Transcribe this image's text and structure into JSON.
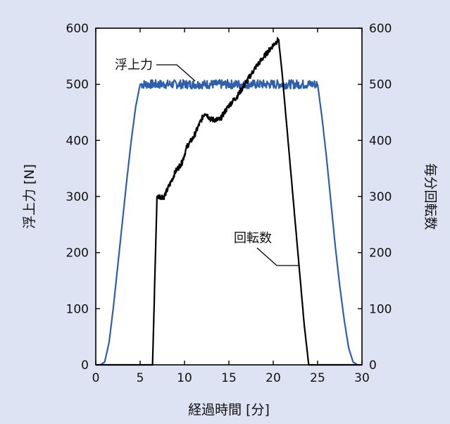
{
  "chart_data": {
    "type": "line",
    "xlabel": "経過時間 [分]",
    "ylabel_left": "浮上力 [N]",
    "ylabel_right": "毎分回転数",
    "xlim": [
      0,
      30
    ],
    "ylim_left": [
      0,
      600
    ],
    "ylim_right": [
      0,
      600
    ],
    "x_ticks": [
      "0",
      "5",
      "10",
      "15",
      "20",
      "25",
      "30"
    ],
    "y_ticks_left": [
      "0",
      "100",
      "200",
      "300",
      "400",
      "500",
      "600"
    ],
    "y_ticks_right": [
      "0",
      "100",
      "200",
      "300",
      "400",
      "500",
      "600"
    ],
    "grid": false,
    "colors": {
      "background": "#dde3f3",
      "plot_bg": "#ffffff",
      "lift": "#2f5fa8",
      "rpm": "#000000"
    },
    "series": [
      {
        "name": "浮上力",
        "axis": "left",
        "points": [
          [
            0.5,
            0
          ],
          [
            1,
            5
          ],
          [
            1.5,
            40
          ],
          [
            2,
            105
          ],
          [
            2.5,
            180
          ],
          [
            3,
            255
          ],
          [
            3.5,
            330
          ],
          [
            4,
            400
          ],
          [
            4.5,
            460
          ],
          [
            5,
            500
          ],
          [
            25,
            500
          ],
          [
            25.5,
            440
          ],
          [
            26,
            370
          ],
          [
            26.5,
            290
          ],
          [
            27,
            210
          ],
          [
            27.5,
            140
          ],
          [
            28,
            80
          ],
          [
            28.5,
            30
          ],
          [
            29,
            5
          ],
          [
            29.5,
            0
          ]
        ]
      },
      {
        "name": "回転数",
        "axis": "right",
        "points": [
          [
            0,
            0
          ],
          [
            6.4,
            0
          ],
          [
            6.9,
            300
          ],
          [
            7.7,
            300
          ],
          [
            8.3,
            320
          ],
          [
            9,
            345
          ],
          [
            9.7,
            360
          ],
          [
            10.3,
            390
          ],
          [
            11,
            405
          ],
          [
            11.7,
            430
          ],
          [
            12.3,
            450
          ],
          [
            13,
            437
          ],
          [
            14,
            437
          ],
          [
            14.5,
            450
          ],
          [
            15,
            462
          ],
          [
            16,
            480
          ],
          [
            17,
            505
          ],
          [
            18,
            530
          ],
          [
            19,
            550
          ],
          [
            20,
            570
          ],
          [
            20.6,
            580
          ],
          [
            21,
            520
          ],
          [
            21.5,
            430
          ],
          [
            22,
            340
          ],
          [
            22.5,
            250
          ],
          [
            23,
            160
          ],
          [
            23.5,
            70
          ],
          [
            24,
            0
          ],
          [
            30,
            0
          ]
        ]
      }
    ],
    "annotations": [
      {
        "text": "浮上力",
        "target_series": "浮上力"
      },
      {
        "text": "回転数",
        "target_series": "回転数"
      }
    ]
  }
}
